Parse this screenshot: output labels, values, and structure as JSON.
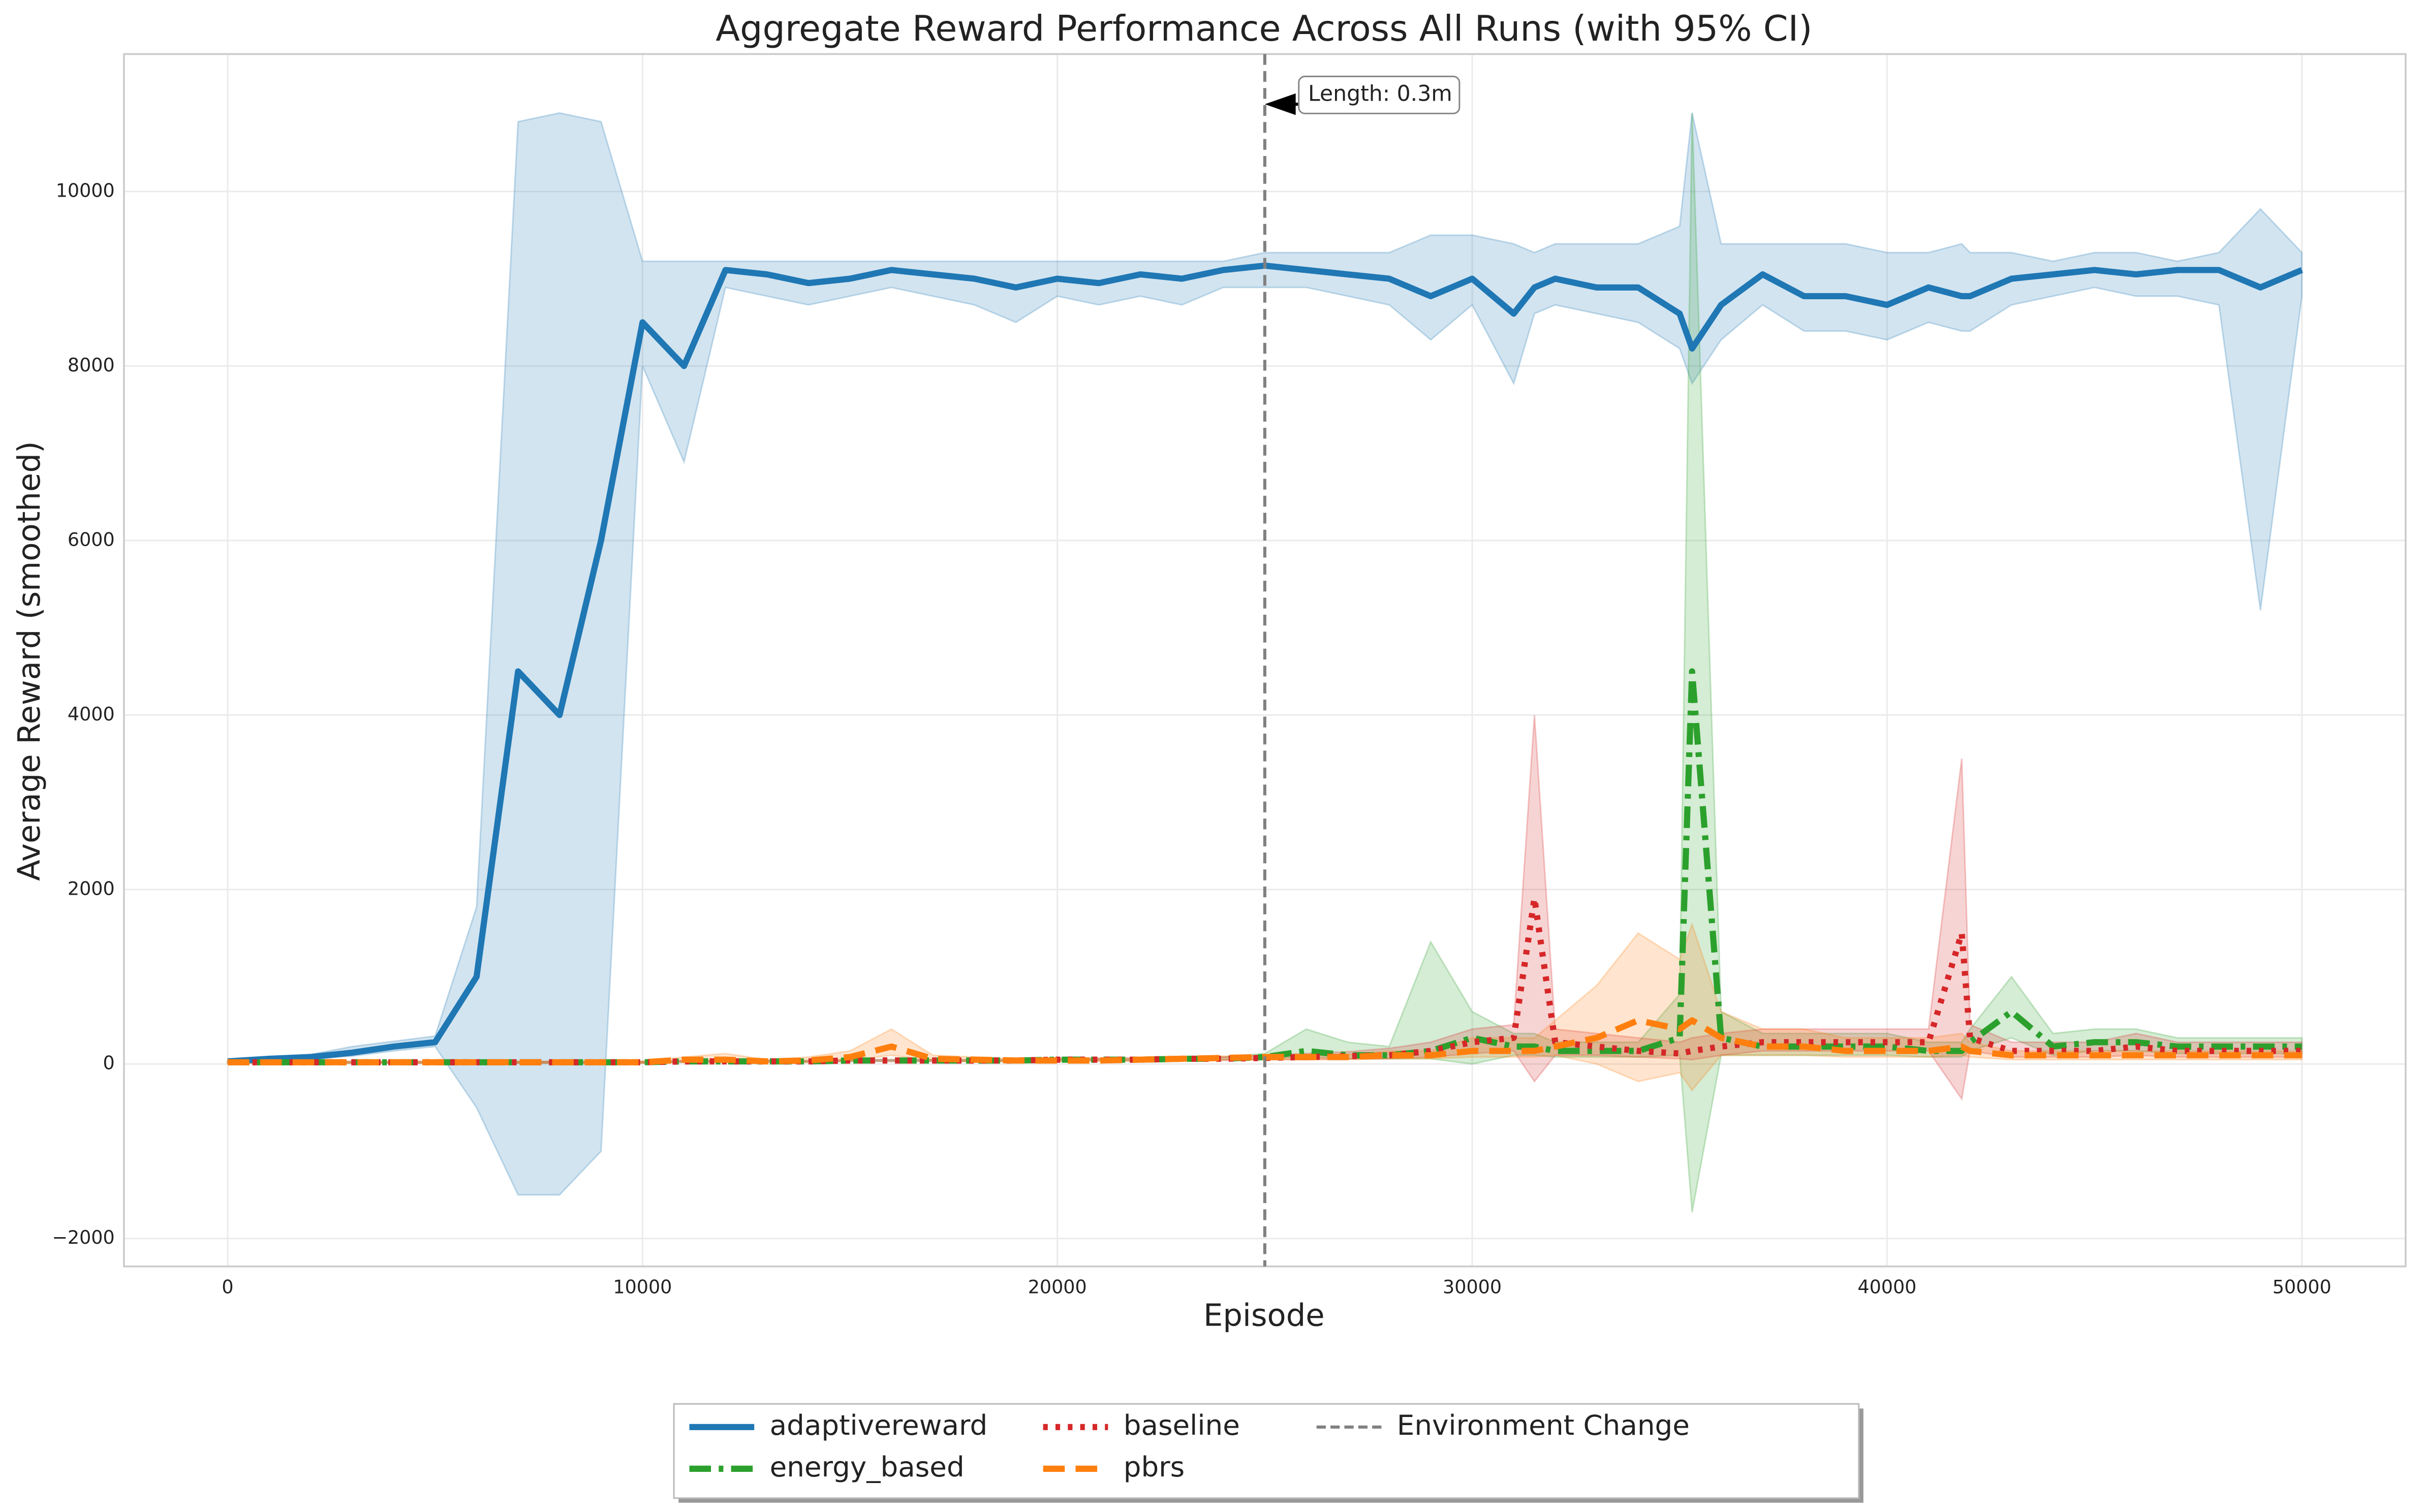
{
  "chart_data": {
    "type": "line",
    "title": "Aggregate Reward Performance Across All Runs (with 95% CI)",
    "x_label": "Episode",
    "y_label": "Average Reward (smoothed)",
    "xlim": [
      -2500,
      52500
    ],
    "ylim": [
      -2320,
      11575
    ],
    "xticks": [
      0,
      10000,
      20000,
      30000,
      40000,
      50000
    ],
    "yticks": [
      {
        "value": -2000,
        "label": "−2000"
      },
      0,
      2000,
      4000,
      6000,
      8000,
      10000
    ],
    "grid": true,
    "legend": "lower center",
    "x": [
      0,
      1000,
      2000,
      3000,
      4000,
      5000,
      6000,
      7000,
      8000,
      9000,
      10000,
      11000,
      12000,
      13000,
      14000,
      15000,
      16000,
      17000,
      18000,
      19000,
      20000,
      21000,
      22000,
      23000,
      24000,
      25000,
      26000,
      27000,
      28000,
      29000,
      30000,
      31000,
      31500,
      32000,
      33000,
      34000,
      35000,
      35300,
      36000,
      37000,
      38000,
      39000,
      40000,
      41000,
      41800,
      42000,
      43000,
      44000,
      45000,
      46000,
      47000,
      48000,
      49000,
      50000
    ],
    "series": [
      {
        "name": "adaptivereward",
        "color": "#1f77b4",
        "style": "solid",
        "values": [
          30,
          60,
          80,
          130,
          200,
          250,
          1000,
          4500,
          4000,
          6000,
          8500,
          8000,
          9100,
          9050,
          8950,
          9000,
          9100,
          9050,
          9000,
          8900,
          9000,
          8950,
          9050,
          9000,
          9100,
          9150,
          9100,
          9050,
          9000,
          8800,
          9000,
          8600,
          8900,
          9000,
          8900,
          8900,
          8600,
          8200,
          8700,
          9050,
          8800,
          8800,
          8700,
          8900,
          8800,
          8800,
          9000,
          9050,
          9100,
          9050,
          9100,
          9100,
          8900,
          9100
        ],
        "lower": [
          20,
          40,
          60,
          90,
          150,
          200,
          -500,
          -1500,
          -1500,
          -1000,
          8000,
          6900,
          8900,
          8800,
          8700,
          8800,
          8900,
          8800,
          8700,
          8500,
          8800,
          8700,
          8800,
          8700,
          8900,
          8900,
          8900,
          8800,
          8700,
          8300,
          8700,
          7800,
          8600,
          8700,
          8600,
          8500,
          8200,
          7800,
          8300,
          8700,
          8400,
          8400,
          8300,
          8500,
          8400,
          8400,
          8700,
          8800,
          8900,
          8800,
          8800,
          8700,
          5200,
          8800
        ],
        "upper": [
          40,
          80,
          110,
          200,
          260,
          320,
          1800,
          10800,
          10900,
          10800,
          9200,
          9200,
          9200,
          9200,
          9200,
          9200,
          9200,
          9200,
          9200,
          9200,
          9200,
          9200,
          9200,
          9200,
          9200,
          9300,
          9300,
          9300,
          9300,
          9500,
          9500,
          9400,
          9300,
          9400,
          9400,
          9400,
          9600,
          10900,
          9400,
          9400,
          9400,
          9400,
          9300,
          9300,
          9400,
          9300,
          9300,
          9200,
          9300,
          9300,
          9200,
          9300,
          9800,
          9300
        ]
      },
      {
        "name": "energy_based",
        "color": "#2ca02c",
        "style": "dashdot",
        "values": [
          20,
          20,
          20,
          20,
          20,
          20,
          20,
          20,
          20,
          20,
          20,
          30,
          30,
          30,
          30,
          40,
          40,
          40,
          40,
          40,
          50,
          50,
          50,
          60,
          60,
          80,
          150,
          100,
          100,
          150,
          300,
          200,
          200,
          150,
          150,
          150,
          300,
          4500,
          300,
          200,
          200,
          200,
          200,
          150,
          150,
          250,
          600,
          200,
          250,
          250,
          200,
          200,
          200,
          200
        ],
        "lower": [
          10,
          10,
          10,
          10,
          10,
          10,
          10,
          10,
          10,
          10,
          10,
          20,
          20,
          20,
          20,
          30,
          30,
          30,
          30,
          30,
          40,
          40,
          40,
          50,
          50,
          60,
          80,
          60,
          60,
          60,
          0,
          100,
          100,
          80,
          80,
          80,
          100,
          -1700,
          100,
          100,
          100,
          100,
          100,
          80,
          80,
          150,
          300,
          100,
          150,
          150,
          120,
          120,
          120,
          120
        ],
        "upper": [
          30,
          30,
          30,
          30,
          30,
          30,
          30,
          30,
          30,
          30,
          30,
          40,
          40,
          40,
          40,
          50,
          50,
          50,
          50,
          50,
          60,
          60,
          60,
          80,
          80,
          120,
          400,
          250,
          200,
          1400,
          600,
          350,
          350,
          250,
          250,
          250,
          800,
          10900,
          600,
          350,
          350,
          350,
          350,
          250,
          250,
          400,
          1000,
          350,
          400,
          400,
          300,
          300,
          300,
          300
        ]
      },
      {
        "name": "baseline",
        "color": "#d62728",
        "style": "dotted",
        "values": [
          20,
          20,
          20,
          20,
          20,
          20,
          20,
          20,
          20,
          20,
          20,
          30,
          30,
          30,
          30,
          40,
          40,
          40,
          40,
          40,
          50,
          50,
          50,
          60,
          60,
          70,
          80,
          90,
          100,
          150,
          250,
          300,
          1900,
          250,
          200,
          150,
          120,
          150,
          200,
          250,
          250,
          250,
          250,
          250,
          1500,
          300,
          150,
          150,
          150,
          200,
          150,
          150,
          150,
          150
        ],
        "lower": [
          10,
          10,
          10,
          10,
          10,
          10,
          10,
          10,
          10,
          10,
          10,
          20,
          20,
          20,
          20,
          30,
          30,
          30,
          30,
          30,
          40,
          40,
          40,
          40,
          40,
          50,
          50,
          60,
          60,
          80,
          120,
          150,
          -200,
          100,
          100,
          80,
          60,
          50,
          100,
          150,
          150,
          150,
          150,
          150,
          -400,
          150,
          80,
          80,
          80,
          100,
          80,
          80,
          80,
          80
        ],
        "upper": [
          30,
          30,
          30,
          30,
          30,
          30,
          30,
          30,
          30,
          30,
          30,
          40,
          40,
          40,
          40,
          50,
          50,
          50,
          50,
          50,
          70,
          70,
          70,
          80,
          80,
          100,
          120,
          140,
          180,
          250,
          400,
          450,
          4000,
          400,
          350,
          300,
          250,
          300,
          350,
          400,
          400,
          400,
          400,
          400,
          3500,
          450,
          250,
          250,
          250,
          350,
          250,
          250,
          250,
          250
        ]
      },
      {
        "name": "pbrs",
        "color": "#ff7f0e",
        "style": "dashed",
        "values": [
          20,
          20,
          20,
          20,
          20,
          20,
          20,
          20,
          20,
          20,
          20,
          50,
          50,
          30,
          40,
          80,
          200,
          60,
          50,
          40,
          40,
          40,
          50,
          60,
          70,
          80,
          80,
          80,
          100,
          100,
          150,
          150,
          150,
          200,
          300,
          500,
          400,
          500,
          300,
          200,
          200,
          150,
          150,
          150,
          200,
          150,
          100,
          100,
          100,
          100,
          100,
          100,
          100,
          100
        ],
        "lower": [
          10,
          10,
          10,
          10,
          10,
          10,
          10,
          10,
          10,
          10,
          10,
          30,
          30,
          20,
          20,
          40,
          100,
          40,
          30,
          30,
          30,
          30,
          30,
          40,
          50,
          50,
          50,
          50,
          60,
          60,
          80,
          80,
          80,
          100,
          0,
          -200,
          -100,
          -300,
          100,
          100,
          100,
          80,
          80,
          80,
          100,
          80,
          50,
          50,
          50,
          50,
          50,
          50,
          50,
          50
        ],
        "upper": [
          30,
          30,
          30,
          30,
          30,
          30,
          30,
          30,
          30,
          30,
          30,
          80,
          120,
          50,
          80,
          150,
          400,
          100,
          80,
          60,
          60,
          60,
          70,
          80,
          90,
          100,
          100,
          110,
          150,
          150,
          300,
          300,
          300,
          500,
          900,
          1500,
          1200,
          1600,
          600,
          400,
          400,
          300,
          300,
          300,
          350,
          250,
          150,
          150,
          150,
          150,
          150,
          150,
          150,
          150
        ]
      }
    ],
    "vline": {
      "x": 25000,
      "label": "Environment Change",
      "color": "#808080"
    },
    "annotation": {
      "text": "Length: 0.3m",
      "x": 25000,
      "y": 11000
    }
  }
}
